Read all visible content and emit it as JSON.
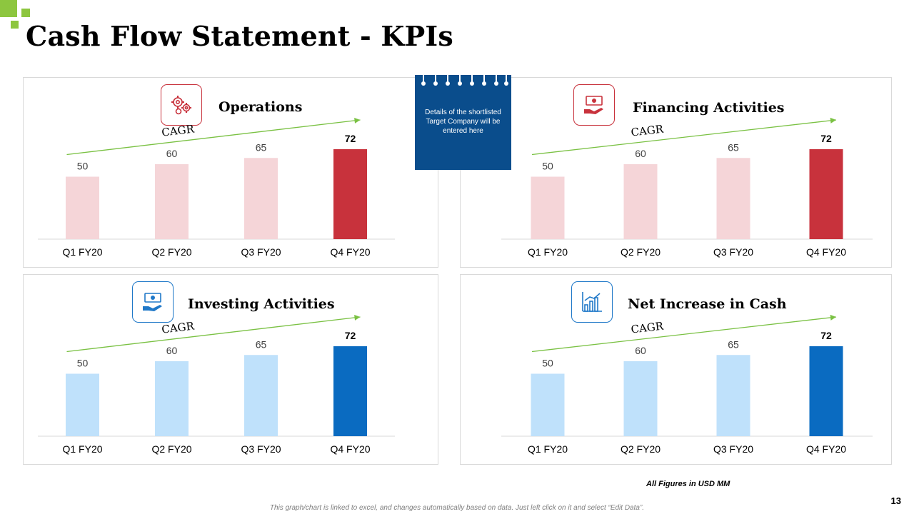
{
  "page": {
    "title": "Cash Flow Statement - KPIs",
    "note_text": "Details of the shortlisted Target Company will be entered here",
    "figures_note": "All Figures in USD MM",
    "footer": "This graph/chart is linked to excel, and changes automatically based on data. Just left click on it and select “Edit Data”.",
    "page_number": "13"
  },
  "colors": {
    "red_light": "#f5d5d8",
    "red_dark": "#c8323c",
    "blue_light": "#bfe1fb",
    "blue_dark": "#0a6bc1",
    "arrow": "#7ac143",
    "red_border": "#c8323c",
    "blue_border": "#1f78c8"
  },
  "chart_data": [
    {
      "type": "bar",
      "title": "Operations",
      "icon": "gears-icon",
      "theme": "red",
      "categories": [
        "Q1 FY20",
        "Q2 FY20",
        "Q3 FY20",
        "Q4 FY20"
      ],
      "values": [
        50,
        60,
        65,
        72
      ],
      "annotation": "CAGR",
      "ylim": [
        0,
        80
      ]
    },
    {
      "type": "bar",
      "title": "Financing Activities",
      "icon": "money-hand-icon",
      "theme": "red",
      "categories": [
        "Q1 FY20",
        "Q2 FY20",
        "Q3 FY20",
        "Q4 FY20"
      ],
      "values": [
        50,
        60,
        65,
        72
      ],
      "annotation": "CAGR",
      "ylim": [
        0,
        80
      ]
    },
    {
      "type": "bar",
      "title": "Investing Activities",
      "icon": "money-hand-icon",
      "theme": "blue",
      "categories": [
        "Q1 FY20",
        "Q2 FY20",
        "Q3 FY20",
        "Q4 FY20"
      ],
      "values": [
        50,
        60,
        65,
        72
      ],
      "annotation": "CAGR",
      "ylim": [
        0,
        80
      ]
    },
    {
      "type": "bar",
      "title": "Net Increase in Cash",
      "icon": "bar-chart-icon",
      "theme": "blue",
      "categories": [
        "Q1 FY20",
        "Q2 FY20",
        "Q3 FY20",
        "Q4 FY20"
      ],
      "values": [
        50,
        60,
        65,
        72
      ],
      "annotation": "CAGR",
      "ylim": [
        0,
        80
      ]
    }
  ]
}
